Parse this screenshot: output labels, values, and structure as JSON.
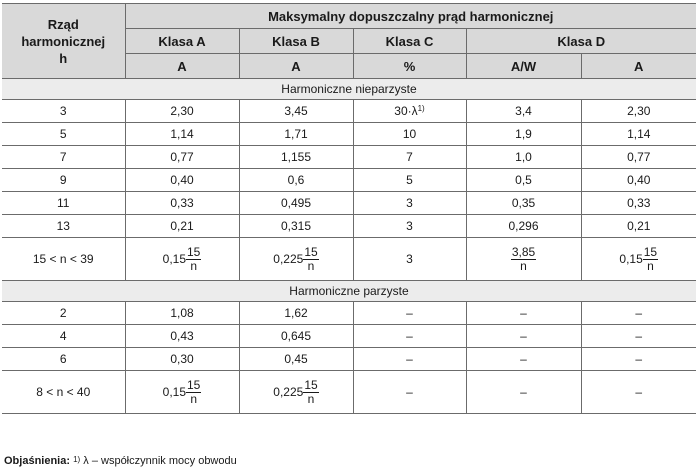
{
  "header": {
    "row_label": [
      "Rząd",
      "harmonicznej",
      "h"
    ],
    "super_title": "Maksymalny dopuszczalny prąd harmonicznej",
    "classes": [
      "Klasa A",
      "Klasa B",
      "Klasa C",
      "Klasa D"
    ],
    "units": [
      "A",
      "A",
      "%",
      "A/W",
      "A"
    ]
  },
  "sections": [
    {
      "title": "Harmoniczne nieparzyste",
      "rows": [
        {
          "h": "3",
          "a": "2,30",
          "b": "3,45",
          "c": "30·λ",
          "c_sup": "1)",
          "d1": "3,4",
          "d2": "2,30"
        },
        {
          "h": "5",
          "a": "1,14",
          "b": "1,71",
          "c": "10",
          "d1": "1,9",
          "d2": "1,14"
        },
        {
          "h": "7",
          "a": "0,77",
          "b": "1,155",
          "c": "7",
          "d1": "1,0",
          "d2": "0,77"
        },
        {
          "h": "9",
          "a": "0,40",
          "b": "0,6",
          "c": "5",
          "d1": "0,5",
          "d2": "0,40"
        },
        {
          "h": "11",
          "a": "0,33",
          "b": "0,495",
          "c": "3",
          "d1": "0,35",
          "d2": "0,33"
        },
        {
          "h": "13",
          "a": "0,21",
          "b": "0,315",
          "c": "3",
          "d1": "0,296",
          "d2": "0,21"
        }
      ],
      "formula_row": {
        "h": "15 < n < 39",
        "a_coef": "0,15",
        "a_num": "15",
        "a_den": "n",
        "b_coef": "0,225",
        "b_num": "15",
        "b_den": "n",
        "c": "3",
        "d1_num": "3,85",
        "d1_den": "n",
        "d2_coef": "0,15",
        "d2_num": "15",
        "d2_den": "n"
      }
    },
    {
      "title": "Harmoniczne parzyste",
      "rows": [
        {
          "h": "2",
          "a": "1,08",
          "b": "1,62",
          "c": "–",
          "d1": "–",
          "d2": "–"
        },
        {
          "h": "4",
          "a": "0,43",
          "b": "0,645",
          "c": "–",
          "d1": "–",
          "d2": "–"
        },
        {
          "h": "6",
          "a": "0,30",
          "b": "0,45",
          "c": "–",
          "d1": "–",
          "d2": "–"
        }
      ],
      "formula_row": {
        "h": "8 < n < 40",
        "a_coef": "0,15",
        "a_num": "15",
        "a_den": "n",
        "b_coef": "0,225",
        "b_num": "15",
        "b_den": "n",
        "c": "–",
        "d1": "–",
        "d2": "–"
      }
    }
  ],
  "footnote": {
    "label": "Objaśnienia:",
    "sup": "1)",
    "text": " λ – współczynnik mocy obwodu"
  }
}
